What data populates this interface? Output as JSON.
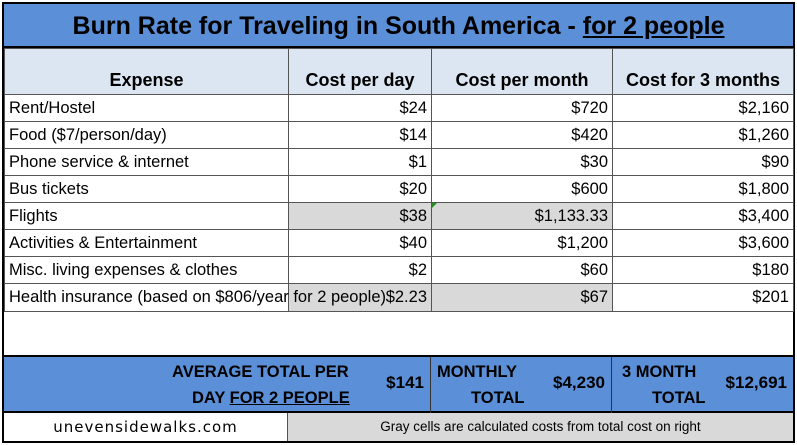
{
  "title": {
    "main": "Burn Rate for Traveling in South America - ",
    "emphasis": "for 2 people"
  },
  "headers": [
    "Expense",
    "Cost per day",
    "Cost per month",
    "Cost for 3 months"
  ],
  "rows": [
    {
      "expense": "Rent/Hostel",
      "day": "$24",
      "month": "$720",
      "three": "$2,160"
    },
    {
      "expense": "Food ($7/person/day)",
      "day": "$14",
      "month": "$420",
      "three": "$1,260"
    },
    {
      "expense": "Phone service & internet",
      "day": "$1",
      "month": "$30",
      "three": "$90"
    },
    {
      "expense": "Bus tickets",
      "day": "$20",
      "month": "$600",
      "three": "$1,800"
    },
    {
      "expense": "Flights",
      "day": "$38",
      "month": "$1,133.33",
      "three": "$3,400"
    },
    {
      "expense": "Activities & Entertainment",
      "day": "$40",
      "month": "$1,200",
      "three": "$3,600"
    },
    {
      "expense": "Misc. living expenses & clothes",
      "day": "$2",
      "month": "$60",
      "three": "$180"
    },
    {
      "expense": "Health insurance (based on $806/year for 2 people)",
      "day": "$2.23",
      "month": "$67",
      "three": "$201"
    }
  ],
  "totals": {
    "daily_label_1": "AVERAGE TOTAL PER",
    "daily_label_2a": "DAY ",
    "daily_label_2b": "FOR 2 PEOPLE",
    "daily_value": "$141",
    "monthly_label_1": "MONTHLY",
    "monthly_label_2": "TOTAL",
    "monthly_value": "$4,230",
    "three_label_1": "3 MONTH",
    "three_label_2": "TOTAL",
    "three_value": "$12,691"
  },
  "footer": {
    "site": "unevensidewalks.com",
    "note": "Gray cells are calculated costs from total cost on right"
  },
  "colors": {
    "header_blue": "#5b8fd8",
    "header_light": "#dce6f2",
    "calc_gray": "#d9d9d9"
  }
}
